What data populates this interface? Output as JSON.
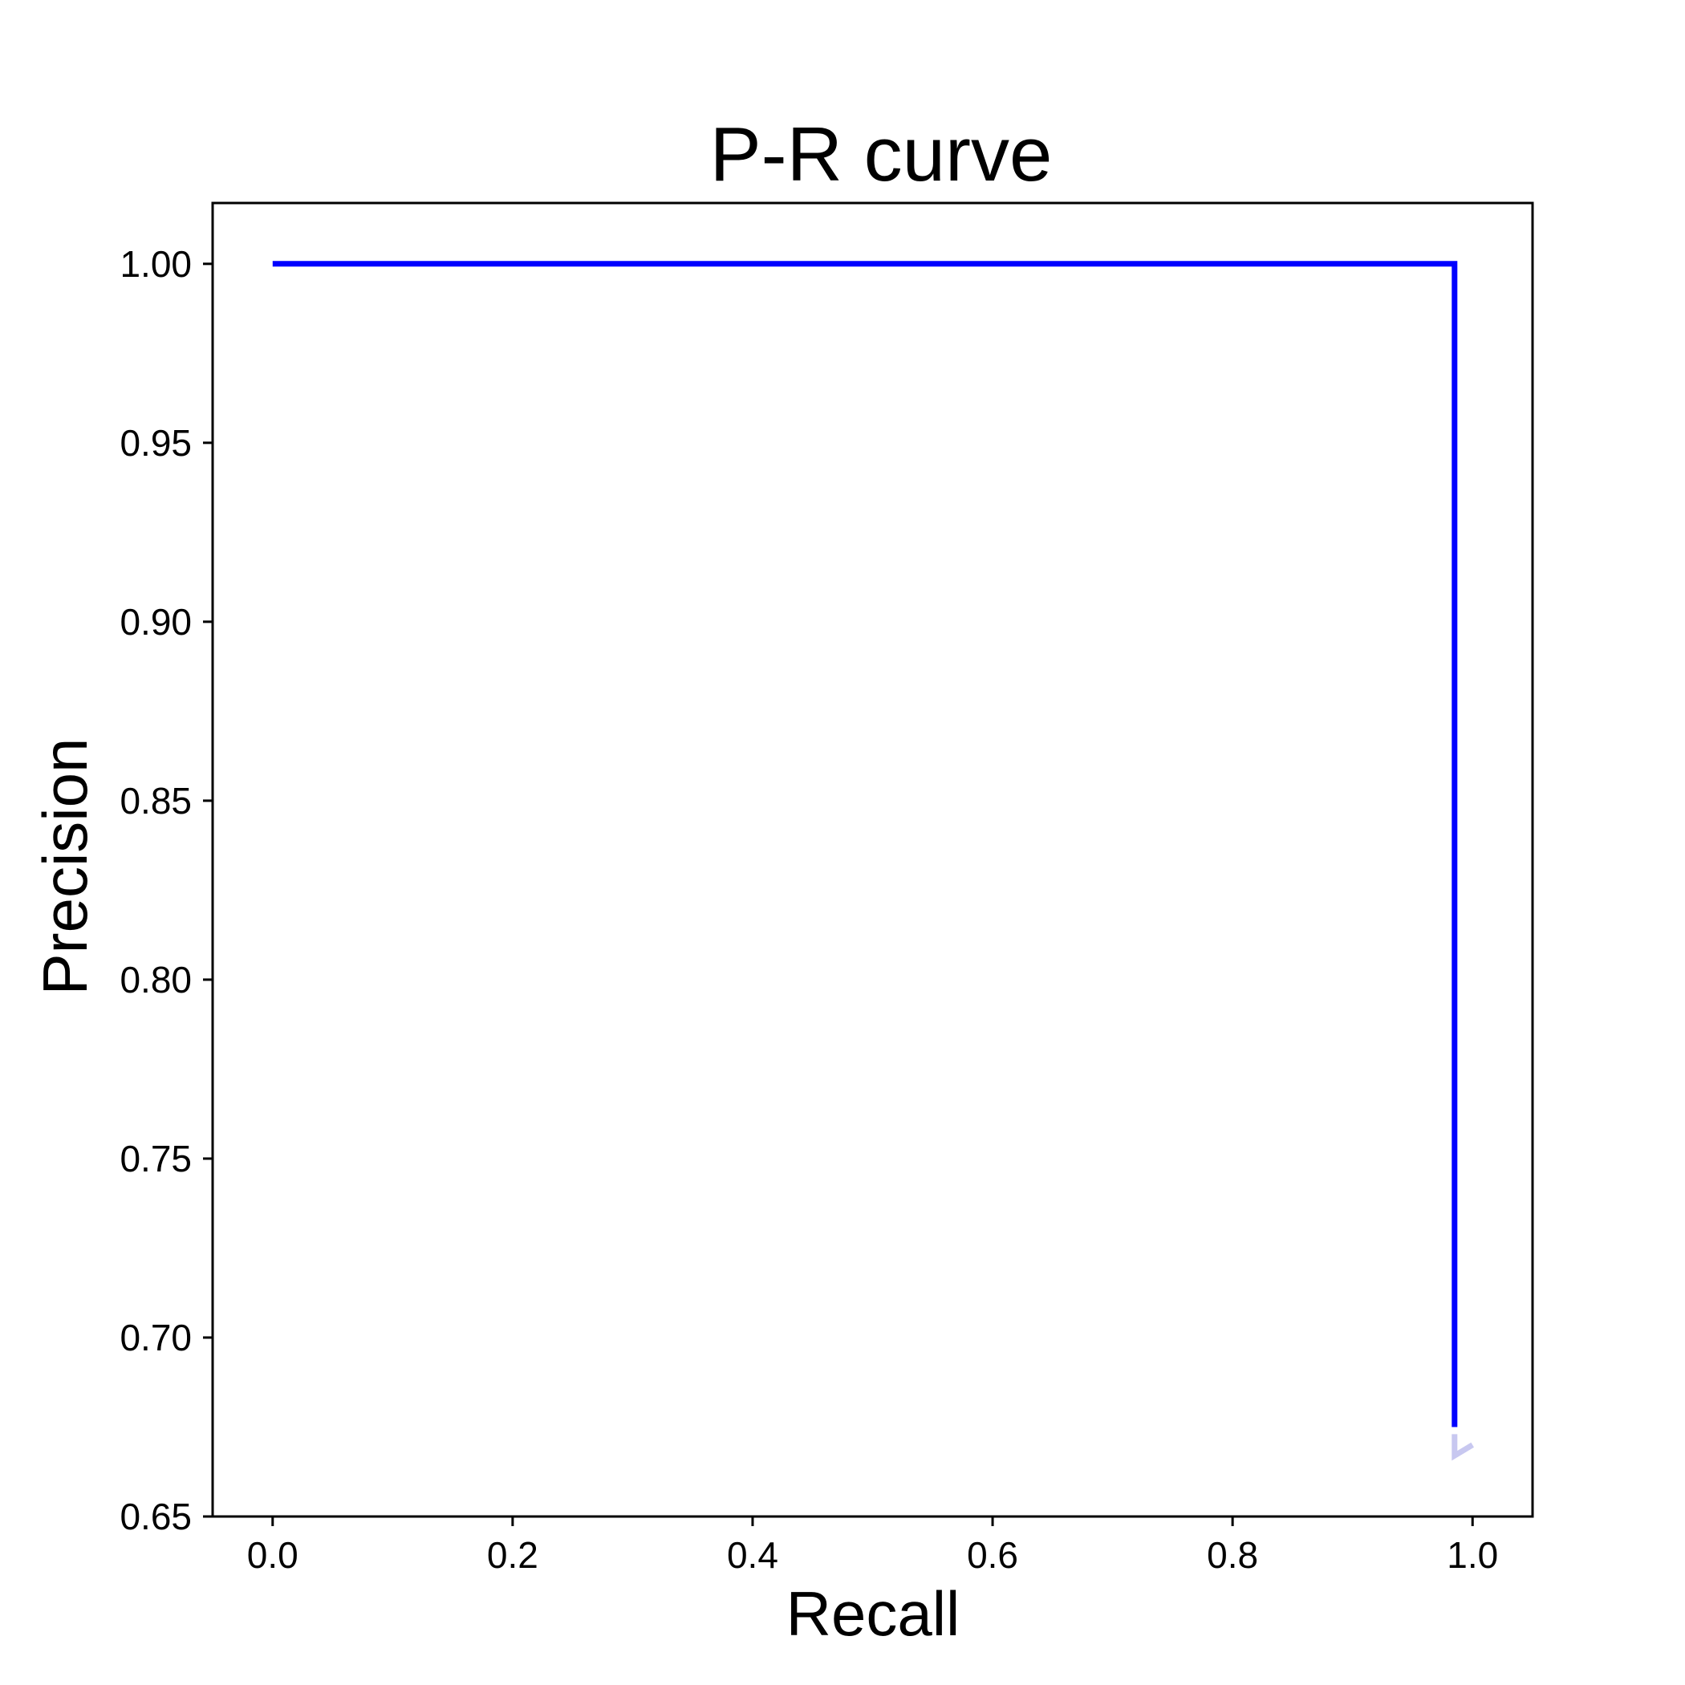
{
  "chart_data": {
    "type": "line",
    "title": "P-R curve",
    "xlabel": "Recall",
    "ylabel": "Precision",
    "xlim": [
      -0.05,
      1.05
    ],
    "ylim": [
      0.65,
      1.017
    ],
    "x_ticks": [
      "0.0",
      "0.2",
      "0.4",
      "0.6",
      "0.8",
      "1.0"
    ],
    "y_ticks": [
      "0.65",
      "0.70",
      "0.75",
      "0.80",
      "0.85",
      "0.90",
      "0.95",
      "1.00"
    ],
    "grid": false,
    "legend": "none",
    "series": [
      {
        "color": "#0000ff",
        "points": [
          {
            "x": 0.0,
            "y": 1.0
          },
          {
            "x": 0.985,
            "y": 1.0
          },
          {
            "x": 0.985,
            "y": 0.675
          }
        ]
      },
      {
        "color": "#c8c8f0",
        "points": [
          {
            "x": 0.985,
            "y": 0.673
          },
          {
            "x": 0.985,
            "y": 0.667
          },
          {
            "x": 1.0,
            "y": 0.67
          }
        ]
      }
    ]
  }
}
